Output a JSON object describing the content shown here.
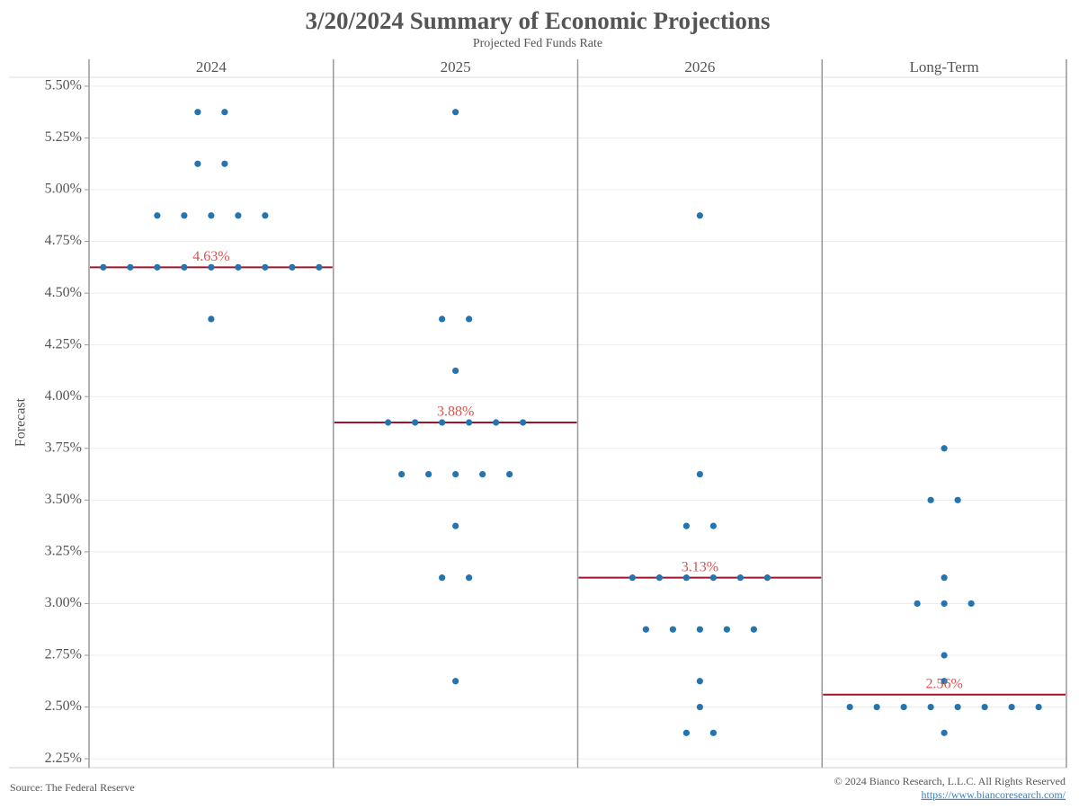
{
  "chart_data": {
    "type": "dotplot",
    "title": "3/20/2024 Summary of Economic Projections",
    "subtitle": "Projected Fed Funds Rate",
    "y_label": "Forecast",
    "ylim": [
      2.207,
      5.543
    ],
    "yticks": [
      {
        "value": 2.25,
        "label": "2.25%"
      },
      {
        "value": 2.5,
        "label": "2.50%"
      },
      {
        "value": 2.75,
        "label": "2.75%"
      },
      {
        "value": 3.0,
        "label": "3.00%"
      },
      {
        "value": 3.25,
        "label": "3.25%"
      },
      {
        "value": 3.5,
        "label": "3.50%"
      },
      {
        "value": 3.75,
        "label": "3.75%"
      },
      {
        "value": 4.0,
        "label": "4.00%"
      },
      {
        "value": 4.25,
        "label": "4.25%"
      },
      {
        "value": 4.5,
        "label": "4.50%"
      },
      {
        "value": 4.75,
        "label": "4.75%"
      },
      {
        "value": 5.0,
        "label": "5.00%"
      },
      {
        "value": 5.25,
        "label": "5.25%"
      },
      {
        "value": 5.5,
        "label": "5.50%"
      }
    ],
    "grid": true,
    "dot_color": "#2474b2",
    "median_color": "#a0152a",
    "median_label_color": "#d9534f",
    "panels": [
      {
        "name": "2024",
        "values": [
          5.375,
          5.375,
          5.125,
          5.125,
          4.875,
          4.875,
          4.875,
          4.875,
          4.875,
          4.625,
          4.625,
          4.625,
          4.625,
          4.625,
          4.625,
          4.625,
          4.625,
          4.625,
          4.375
        ],
        "median": 4.625,
        "median_label": "4.63%"
      },
      {
        "name": "2025",
        "values": [
          5.375,
          4.375,
          4.375,
          4.125,
          3.875,
          3.875,
          3.875,
          3.875,
          3.875,
          3.875,
          3.625,
          3.625,
          3.625,
          3.625,
          3.625,
          3.375,
          3.125,
          3.125,
          2.625
        ],
        "median": 3.875,
        "median_label": "3.88%"
      },
      {
        "name": "2026",
        "values": [
          4.875,
          3.625,
          3.375,
          3.375,
          3.125,
          3.125,
          3.125,
          3.125,
          3.125,
          3.125,
          2.875,
          2.875,
          2.875,
          2.875,
          2.875,
          2.625,
          2.5,
          2.375,
          2.375
        ],
        "median": 3.125,
        "median_label": "3.13%"
      },
      {
        "name": "Long-Term",
        "values": [
          3.75,
          3.5,
          3.5,
          3.125,
          3.0,
          3.0,
          3.0,
          2.75,
          2.625,
          2.5,
          2.5,
          2.5,
          2.5,
          2.5,
          2.5,
          2.5,
          2.5,
          2.375
        ],
        "median": 2.56,
        "median_label": "2.56%"
      }
    ],
    "source": "Source: The Federal Reserve",
    "copyright": "© 2024 Bianco Research, L.L.C. All Rights Reserved",
    "url": "https://www.biancoresearch.com/"
  }
}
